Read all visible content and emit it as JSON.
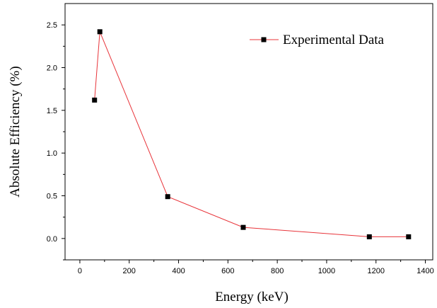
{
  "chart_data": {
    "type": "line",
    "xlabel": "Energy (keV)",
    "ylabel": "Absolute Efficiency (%)",
    "xlim": [
      -60,
      1430
    ],
    "ylim": [
      -0.25,
      2.75
    ],
    "x_ticks": [
      0,
      200,
      400,
      600,
      800,
      1000,
      1200,
      1400
    ],
    "x_tick_labels": [
      "0",
      "200",
      "400",
      "600",
      "800",
      "1000",
      "1200",
      "1400"
    ],
    "y_ticks": [
      0,
      0.5,
      1.0,
      1.5,
      2.0,
      2.5
    ],
    "y_tick_labels": [
      "0.0",
      "0.5",
      "1.0",
      "1.5",
      "2.0",
      "2.5"
    ],
    "grid": false,
    "legend_position": "top-right",
    "series": [
      {
        "name": "Experimental Data",
        "line_color": "#e8343a",
        "marker_color": "#000000",
        "marker": "square",
        "x": [
          59.5,
          81,
          356,
          662,
          1173,
          1332
        ],
        "y": [
          1.62,
          2.42,
          0.49,
          0.13,
          0.02,
          0.02
        ]
      }
    ]
  }
}
